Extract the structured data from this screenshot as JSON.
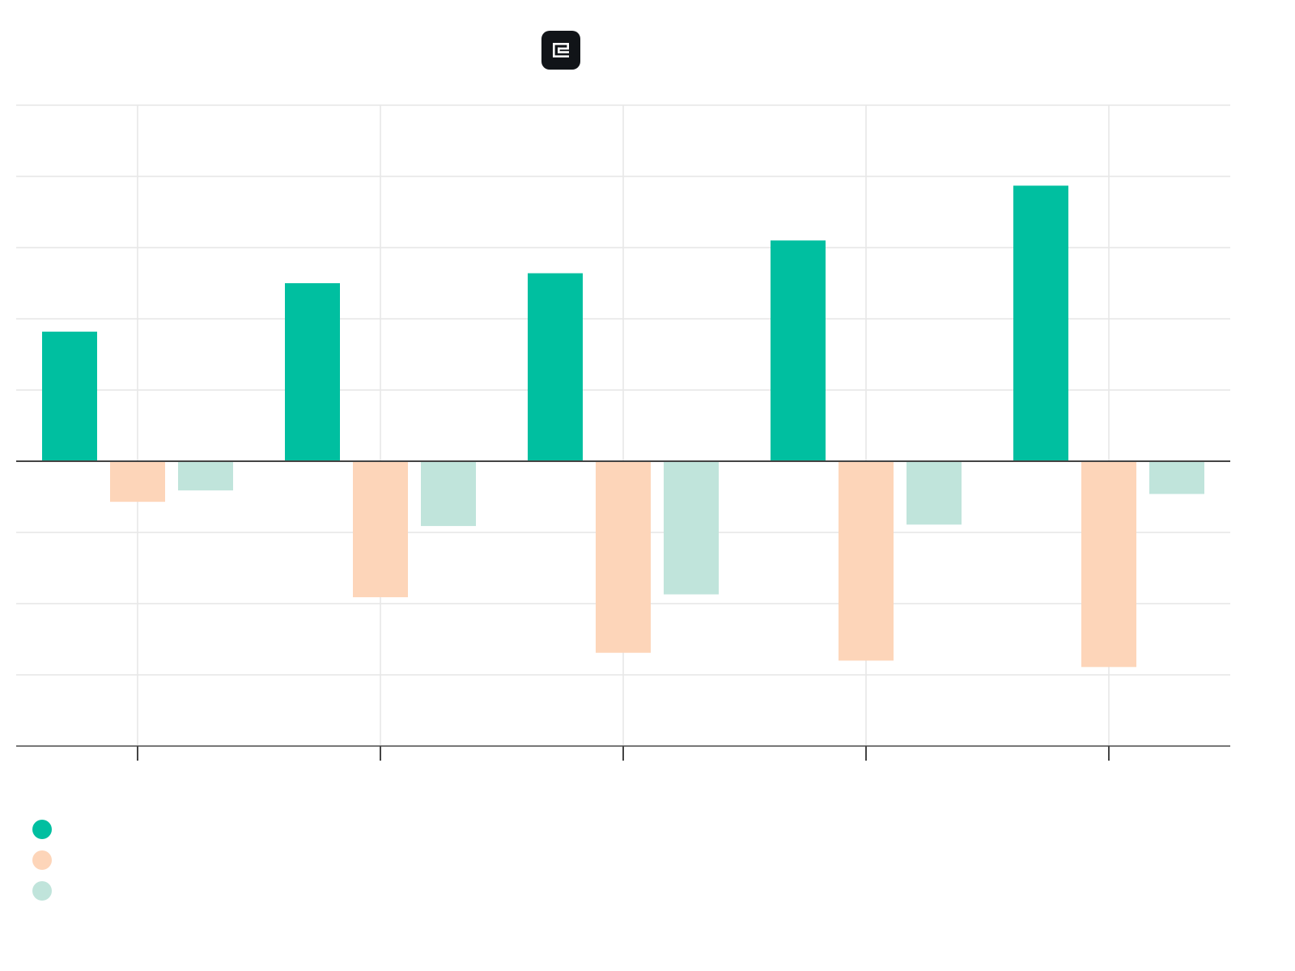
{
  "header": {
    "logo_icon": "app-logo-icon"
  },
  "colors": {
    "series_primary": "#00bfa0",
    "series_secondary": "#fdd5b9",
    "series_tertiary": "#c0e4db",
    "grid": "#e6e6e6",
    "zero_line": "#444444",
    "axis": "#777777"
  },
  "chart_data": {
    "type": "bar",
    "title": "",
    "xlabel": "",
    "ylabel": "",
    "categories": [
      "",
      "",
      "",
      "",
      ""
    ],
    "ylim": [
      -4,
      5
    ],
    "grid": true,
    "legend_position": "bottom-left",
    "series": [
      {
        "color": "#00bfa0",
        "values": [
          1.82,
          2.5,
          2.64,
          3.1,
          3.87
        ]
      },
      {
        "color": "#fdd5b9",
        "values": [
          -0.57,
          -1.91,
          -2.69,
          -2.8,
          -2.89
        ]
      },
      {
        "color": "#c0e4db",
        "values": [
          -0.41,
          -0.91,
          -1.87,
          -0.89,
          -0.46
        ]
      }
    ]
  }
}
